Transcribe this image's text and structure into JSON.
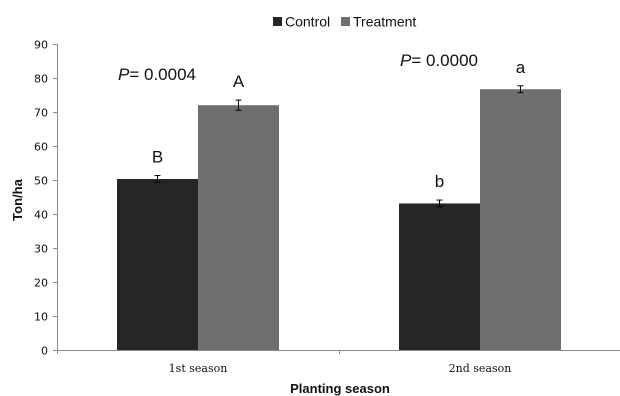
{
  "chart_data": {
    "type": "bar",
    "xlabel": "Planting season",
    "ylabel": "Ton/ha",
    "ylim": [
      0,
      90
    ],
    "yticks": [
      0,
      10,
      20,
      30,
      40,
      50,
      60,
      70,
      80,
      90
    ],
    "categories": [
      "1st season",
      "2nd season"
    ],
    "series": [
      {
        "name": "Control",
        "color": "#262626",
        "values": [
          50.3,
          43.1
        ],
        "errors": [
          1.0,
          1.0
        ],
        "letters": [
          "B",
          "b"
        ]
      },
      {
        "name": "Treatment",
        "color": "#6f6f6f",
        "values": [
          72.0,
          76.7
        ],
        "errors": [
          1.5,
          1.0
        ],
        "letters": [
          "A",
          "a"
        ]
      }
    ],
    "annotations": [
      {
        "italic": "P",
        "text": "= 0.0004"
      },
      {
        "italic": "P",
        "text": "= 0.0000"
      }
    ],
    "legend_position": "top",
    "grid": false,
    "error_bars": true
  }
}
